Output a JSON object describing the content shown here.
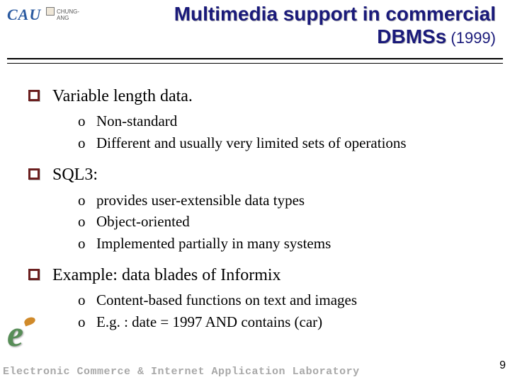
{
  "logo": {
    "brand": "CAU",
    "subtext": "CHUNG-ANG"
  },
  "title": {
    "line1": "Multimedia support in commercial",
    "line2_main": "DBMSs",
    "line2_year": " (1999)"
  },
  "bullets": [
    {
      "text": "Variable length data.",
      "sub": [
        "Non-standard",
        "Different and usually very limited sets of operations"
      ]
    },
    {
      "text": "SQL3:",
      "sub": [
        "provides user-extensible data types",
        "Object-oriented",
        "Implemented partially in many systems"
      ]
    },
    {
      "text": "Example: data blades of Informix",
      "sub": [
        "Content-based functions on text and images",
        "E.g. : date = 1997 AND contains (car)"
      ]
    }
  ],
  "footer": {
    "lab": "Electronic Commerce & Internet Application Laboratory",
    "page": "9"
  },
  "styling": {
    "titleColor": "#1a1a7a",
    "titleFontSize": 28,
    "bodyFontSize": 24,
    "subFontSize": 21,
    "bulletBorderColor": "#6b1f1f",
    "footerColor": "#a8a8a8",
    "background": "#ffffff"
  }
}
